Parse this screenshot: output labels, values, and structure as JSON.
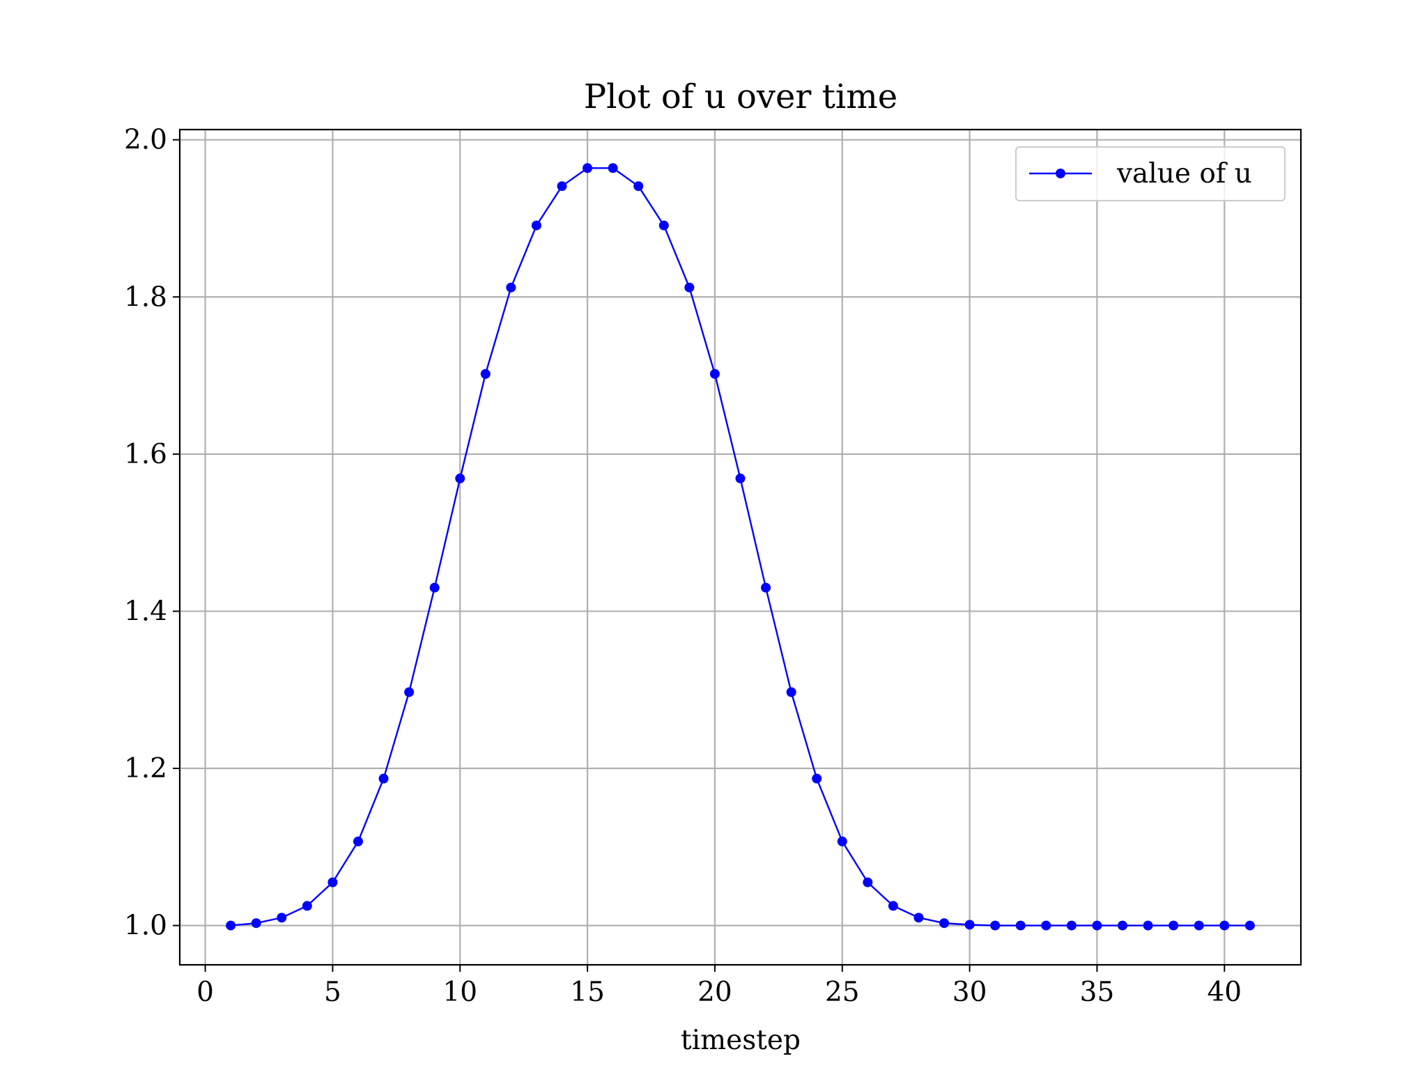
{
  "chart_data": {
    "type": "line",
    "title": "Plot of u over time",
    "xlabel": "timestep",
    "ylabel": "",
    "xlim": [
      -1,
      43
    ],
    "ylim": [
      0.95,
      2.013
    ],
    "xticks": [
      0,
      5,
      10,
      15,
      20,
      25,
      30,
      35,
      40
    ],
    "yticks": [
      1.0,
      1.2,
      1.4,
      1.6,
      1.8,
      2.0
    ],
    "xtick_labels": [
      "0",
      "5",
      "10",
      "15",
      "20",
      "25",
      "30",
      "35",
      "40"
    ],
    "ytick_labels": [
      "1.0",
      "1.2",
      "1.4",
      "1.6",
      "1.8",
      "2.0"
    ],
    "grid": true,
    "legend_position": "top-right",
    "colors": {
      "series": "#0000ff",
      "grid": "#b0b0b0",
      "frame": "#000000"
    },
    "series": [
      {
        "name": "value of u",
        "marker": "dot",
        "x": [
          1,
          2,
          3,
          4,
          5,
          6,
          7,
          8,
          9,
          10,
          11,
          12,
          13,
          14,
          15,
          16,
          17,
          18,
          19,
          20,
          21,
          22,
          23,
          24,
          25,
          26,
          27,
          28,
          29,
          30,
          31,
          32,
          33,
          34,
          35,
          36,
          37,
          38,
          39,
          40,
          41
        ],
        "y": [
          1.0,
          1.003,
          1.01,
          1.025,
          1.055,
          1.107,
          1.187,
          1.297,
          1.43,
          1.569,
          1.702,
          1.812,
          1.891,
          1.941,
          1.964,
          1.964,
          1.941,
          1.891,
          1.812,
          1.702,
          1.569,
          1.43,
          1.297,
          1.187,
          1.107,
          1.055,
          1.025,
          1.01,
          1.003,
          1.001,
          1.0,
          1.0,
          1.0,
          1.0,
          1.0,
          1.0,
          1.0,
          1.0,
          1.0,
          1.0,
          1.0
        ]
      }
    ]
  }
}
